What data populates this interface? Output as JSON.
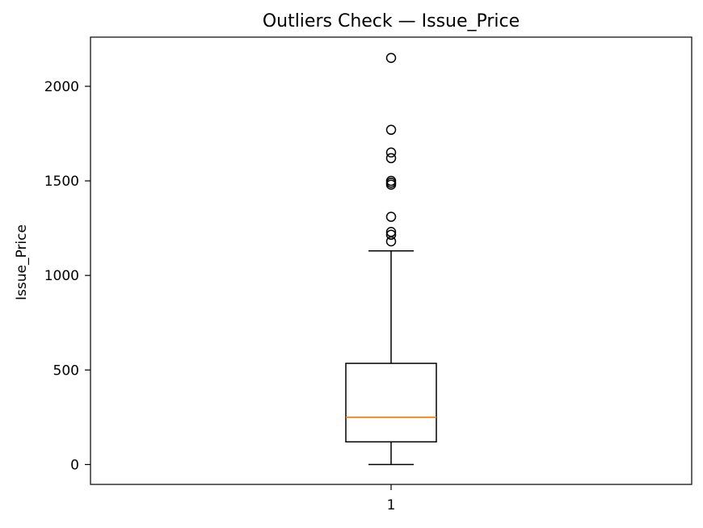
{
  "chart_data": {
    "type": "box",
    "title": "Outliers Check — Issue_Price",
    "xlabel": "",
    "ylabel": "Issue_Price",
    "categories": [
      "1"
    ],
    "ylim": [
      -105,
      2260
    ],
    "yticks": [
      0,
      500,
      1000,
      1500,
      2000
    ],
    "grid": false,
    "box": {
      "whisker_low": 0,
      "q1": 120,
      "median": 250,
      "q3": 535,
      "whisker_high": 1130
    },
    "outliers": [
      1180,
      1215,
      1230,
      1310,
      1480,
      1490,
      1500,
      1620,
      1650,
      1770,
      2150
    ],
    "colors": {
      "box": "#000000",
      "median": "#ff7f0e",
      "whisker": "#000000",
      "outlier": "#000000"
    }
  }
}
